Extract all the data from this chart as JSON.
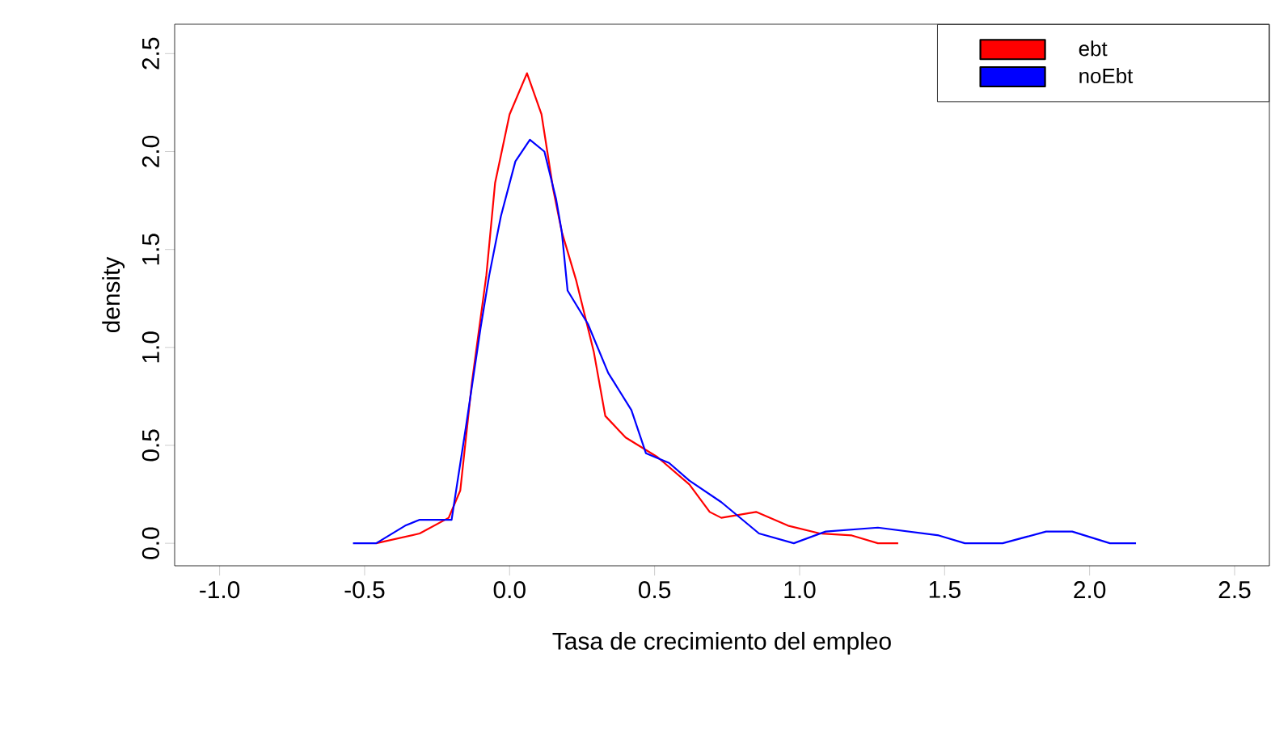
{
  "chart_data": {
    "type": "line",
    "xlabel": "Tasa de crecimiento del empleo",
    "ylabel": "density",
    "xlim": [
      -1.155,
      2.62
    ],
    "ylim": [
      -0.115,
      2.65
    ],
    "xticks": [
      {
        "value": -1,
        "label": "-1.0"
      },
      {
        "value": -0.5,
        "label": "-0.5"
      },
      {
        "value": 0,
        "label": "0.0"
      },
      {
        "value": 0.5,
        "label": "0.5"
      },
      {
        "value": 1,
        "label": "1.0"
      },
      {
        "value": 1.5,
        "label": "1.5"
      },
      {
        "value": 2,
        "label": "2.0"
      },
      {
        "value": 2.5,
        "label": "2.5"
      }
    ],
    "yticks": [
      {
        "value": 0,
        "label": "0.0"
      },
      {
        "value": 0.5,
        "label": "0.5"
      },
      {
        "value": 1,
        "label": "1.0"
      },
      {
        "value": 1.5,
        "label": "1.5"
      },
      {
        "value": 2,
        "label": "2.0"
      },
      {
        "value": 2.5,
        "label": "2.5"
      }
    ],
    "legend": "top right",
    "grid": false,
    "series": [
      {
        "name": "ebt",
        "color": "#ff0000",
        "x": [
          -0.46,
          -0.31,
          -0.21,
          -0.17,
          -0.13,
          -0.08,
          -0.05,
          0.0,
          0.06,
          0.11,
          0.15,
          0.18,
          0.23,
          0.29,
          0.33,
          0.4,
          0.51,
          0.62,
          0.69,
          0.73,
          0.85,
          0.96,
          1.07,
          1.18,
          1.27,
          1.34
        ],
        "values": [
          0,
          0.05,
          0.13,
          0.27,
          0.82,
          1.37,
          1.84,
          2.19,
          2.4,
          2.19,
          1.81,
          1.59,
          1.34,
          0.98,
          0.65,
          0.54,
          0.44,
          0.3,
          0.16,
          0.13,
          0.16,
          0.09,
          0.05,
          0.04,
          0,
          0
        ]
      },
      {
        "name": "noEbt",
        "color": "#0000ff",
        "x": [
          -0.54,
          -0.46,
          -0.36,
          -0.31,
          -0.2,
          -0.15,
          -0.1,
          -0.07,
          -0.03,
          0.02,
          0.07,
          0.12,
          0.16,
          0.18,
          0.2,
          0.27,
          0.34,
          0.42,
          0.47,
          0.55,
          0.62,
          0.73,
          0.86,
          0.98,
          1.09,
          1.27,
          1.48,
          1.57,
          1.7,
          1.85,
          1.94,
          2.07,
          2.16
        ],
        "values": [
          0,
          0,
          0.09,
          0.12,
          0.12,
          0.6,
          1.1,
          1.37,
          1.67,
          1.95,
          2.06,
          2.0,
          1.76,
          1.59,
          1.29,
          1.12,
          0.87,
          0.68,
          0.46,
          0.41,
          0.32,
          0.21,
          0.05,
          0,
          0.06,
          0.08,
          0.04,
          0,
          0,
          0.06,
          0.06,
          0,
          0
        ]
      }
    ]
  }
}
